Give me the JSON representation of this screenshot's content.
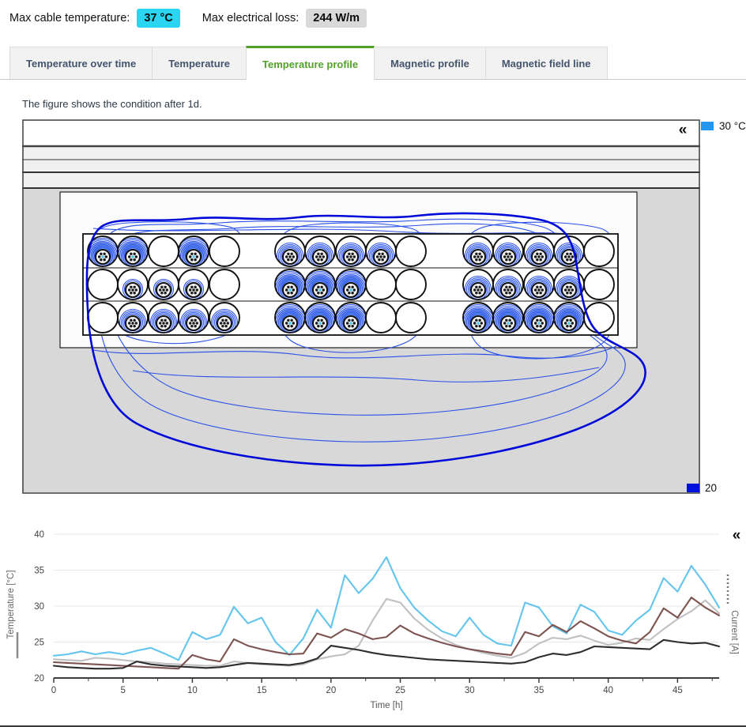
{
  "header": {
    "max_cable_temperature_label": "Max cable temperature:",
    "max_cable_temperature_value": "37 °C",
    "max_electrical_loss_label": "Max electrical loss:",
    "max_electrical_loss_value": "244 W/m",
    "badge_cyan_color": "#29d5f1",
    "badge_gray_color": "#d9d9d9"
  },
  "tabs": {
    "items": [
      "Temperature over time",
      "Temperature",
      "Temperature profile",
      "Magnetic profile",
      "Magnetic field line"
    ],
    "active": "Temperature profile",
    "active_color": "#53a02b"
  },
  "caption": "The figure shows the condition after 1d.",
  "figure": {
    "collapse_icon": "«",
    "legend_top": {
      "label": "30 °C",
      "color": "#2196f3"
    },
    "legend_bottom": {
      "label": "20",
      "color": "#0011dd"
    },
    "isoline_color": "#2a50e8",
    "outer_isoline_color": "#0009d8",
    "duct_bank": {
      "rows": [
        [
          3,
          3,
          0,
          3,
          0,
          2,
          2,
          2,
          2,
          0,
          2,
          2,
          2,
          2,
          0
        ],
        [
          0,
          1,
          1,
          1,
          0,
          3,
          3,
          3,
          0,
          0,
          2,
          2,
          2,
          2,
          0
        ],
        [
          0,
          2,
          2,
          2,
          2,
          3,
          3,
          3,
          0,
          0,
          3,
          3,
          3,
          3,
          0
        ]
      ]
    }
  },
  "chart": {
    "collapse_icon": "«",
    "legend_left_style": "solid",
    "legend_right_style": "dashed"
  },
  "chart_data": {
    "type": "line",
    "xlabel": "Time [h]",
    "ylabel": "Temperature [°C]",
    "ylabel_right": "Current [A]",
    "xlim": [
      0,
      48
    ],
    "ylim": [
      20,
      40
    ],
    "xticks": [
      0,
      5,
      10,
      15,
      20,
      25,
      30,
      35,
      40,
      45
    ],
    "yticks": [
      40,
      35,
      30,
      25,
      20
    ],
    "grid": true,
    "x_step_hours": 1,
    "series": [
      {
        "name": "light-blue",
        "color": "#63c5ee",
        "values": [
          23.1,
          23.3,
          23.7,
          23.3,
          23.6,
          23.3,
          23.8,
          24.2,
          23.4,
          22.5,
          26.4,
          25.4,
          26.0,
          29.9,
          27.6,
          28.4,
          25.0,
          23.2,
          25.5,
          29.5,
          27.0,
          34.3,
          31.8,
          33.8,
          36.8,
          32.5,
          29.8,
          28.0,
          26.5,
          25.8,
          28.4,
          26.0,
          24.8,
          24.5,
          30.5,
          29.8,
          27.2,
          26.2,
          30.2,
          29.2,
          26.6,
          26.0,
          28.0,
          29.5,
          33.9,
          32.0,
          35.6,
          33.0,
          29.8
        ]
      },
      {
        "name": "gray",
        "color": "#c0c0c0",
        "values": [
          22.6,
          22.5,
          22.4,
          22.8,
          22.7,
          22.5,
          22.3,
          22.2,
          22.0,
          21.9,
          21.8,
          21.7,
          21.7,
          22.3,
          22.1,
          21.9,
          21.8,
          21.7,
          21.9,
          22.6,
          23.0,
          23.3,
          24.5,
          28.0,
          31.0,
          30.5,
          28.3,
          26.7,
          25.5,
          24.6,
          24.0,
          23.5,
          23.1,
          22.8,
          23.5,
          24.8,
          25.6,
          25.4,
          25.9,
          25.2,
          24.6,
          24.9,
          25.5,
          25.3,
          26.8,
          28.2,
          29.3,
          30.8,
          29.0
        ]
      },
      {
        "name": "brown",
        "color": "#7d5450",
        "values": [
          22.2,
          22.1,
          22.0,
          21.9,
          21.8,
          21.7,
          21.6,
          21.5,
          21.4,
          21.3,
          23.2,
          22.6,
          22.3,
          25.4,
          24.5,
          24.0,
          23.6,
          23.3,
          23.4,
          26.2,
          25.6,
          26.8,
          26.2,
          25.4,
          25.7,
          27.3,
          26.2,
          25.5,
          24.9,
          24.4,
          24.0,
          23.7,
          23.4,
          23.2,
          26.4,
          25.8,
          27.4,
          26.4,
          27.9,
          26.9,
          25.8,
          25.2,
          24.8,
          26.4,
          29.7,
          28.4,
          31.2,
          29.8,
          28.7
        ]
      },
      {
        "name": "dark",
        "color": "#2e2e2e",
        "values": [
          21.7,
          21.5,
          21.4,
          21.3,
          21.3,
          21.4,
          22.3,
          21.9,
          21.7,
          21.6,
          21.5,
          21.4,
          21.5,
          21.8,
          22.1,
          22.0,
          21.9,
          21.8,
          22.1,
          22.7,
          24.5,
          24.2,
          23.9,
          23.5,
          23.2,
          23.0,
          22.8,
          22.6,
          22.5,
          22.4,
          22.3,
          22.2,
          22.1,
          22.0,
          22.2,
          22.9,
          23.4,
          23.2,
          23.6,
          24.4,
          24.3,
          24.2,
          24.1,
          24.0,
          25.3,
          25.0,
          24.8,
          24.9,
          24.4
        ]
      }
    ]
  }
}
